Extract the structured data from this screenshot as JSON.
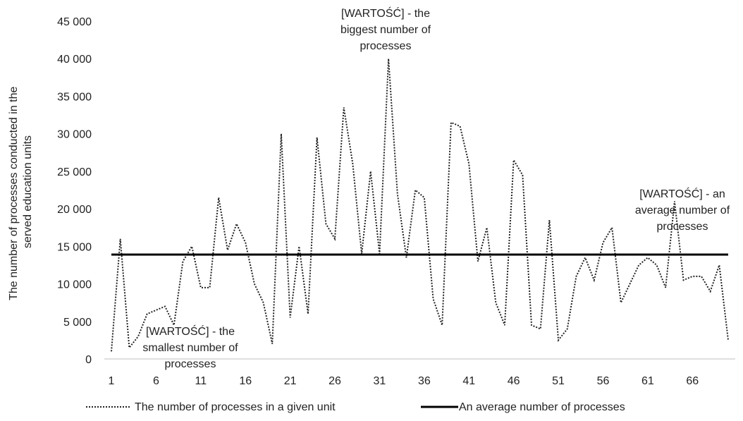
{
  "chart_data": {
    "type": "line",
    "title": "",
    "xlabel": "",
    "ylabel": "The number of processes conducted in the served education units",
    "ylim": [
      0,
      45000
    ],
    "y_ticks": [
      "0",
      "5 000",
      "10 000",
      "15 000",
      "20 000",
      "25 000",
      "30 000",
      "35 000",
      "40 000",
      "45 000"
    ],
    "x_ticks": [
      "1",
      "6",
      "11",
      "16",
      "21",
      "26",
      "31",
      "36",
      "41",
      "46",
      "51",
      "56",
      "61",
      "66"
    ],
    "grid": false,
    "legend_position": "bottom",
    "series": [
      {
        "name": "The number of processes in a given unit",
        "style": "dotted",
        "color": "#222222",
        "x": [
          1,
          2,
          3,
          4,
          5,
          6,
          7,
          8,
          9,
          10,
          11,
          12,
          13,
          14,
          15,
          16,
          17,
          18,
          19,
          20,
          21,
          22,
          23,
          24,
          25,
          26,
          27,
          28,
          29,
          30,
          31,
          32,
          33,
          34,
          35,
          36,
          37,
          38,
          39,
          40,
          41,
          42,
          43,
          44,
          45,
          46,
          47,
          48,
          49,
          50,
          51,
          52,
          53,
          54,
          55,
          56,
          57,
          58,
          59,
          60,
          61,
          62,
          63,
          64,
          65,
          66,
          67,
          68,
          69,
          70
        ],
        "values": [
          1000,
          16000,
          1500,
          3000,
          6000,
          6500,
          7000,
          4500,
          13000,
          15000,
          9500,
          9500,
          21500,
          14500,
          18000,
          15500,
          10000,
          7500,
          2000,
          30000,
          5500,
          15000,
          6000,
          29500,
          18000,
          16000,
          33500,
          26000,
          14000,
          25000,
          14000,
          40000,
          22000,
          13500,
          22500,
          21500,
          8000,
          4500,
          31500,
          31000,
          26000,
          13000,
          17500,
          7500,
          4500,
          26500,
          24500,
          4500,
          4000,
          18500,
          2500,
          4000,
          11000,
          13500,
          10500,
          15500,
          17500,
          7500,
          10000,
          12500,
          13500,
          12500,
          9500,
          21000,
          10500,
          11000,
          11000,
          9000,
          12500,
          2500
        ]
      },
      {
        "name": "An average number of processes",
        "style": "solid",
        "color": "#000000",
        "values": [
          13900,
          13900
        ]
      }
    ],
    "annotations": [
      {
        "id": "min",
        "lines": [
          "[WARTOŚĆ] - the",
          "smallest number of",
          "processes"
        ]
      },
      {
        "id": "max",
        "lines": [
          "[WARTOŚĆ] - the",
          "biggest number of",
          "processes"
        ]
      },
      {
        "id": "avg",
        "lines": [
          "[WARTOŚĆ] - an",
          "average number of",
          "processes"
        ]
      }
    ]
  }
}
